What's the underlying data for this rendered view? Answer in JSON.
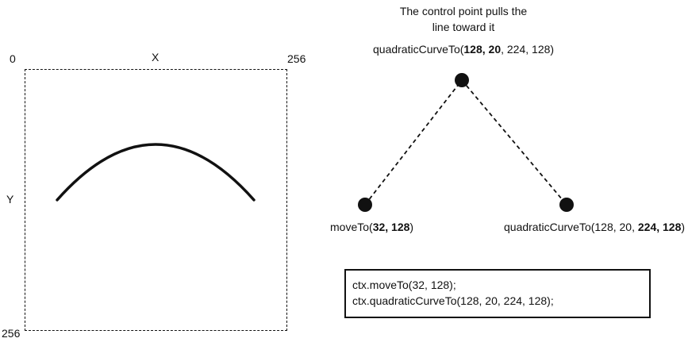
{
  "canvas": {
    "origin_label": "0",
    "x_axis_label": "X",
    "x_max_label": "256",
    "y_axis_label": "Y",
    "y_max_label": "256"
  },
  "caption": {
    "line1": "The control point pulls the",
    "line2": "line toward it"
  },
  "control_label": {
    "prefix": "quadraticCurveTo(",
    "cp": "128, 20",
    "rest": ", 224, 128)"
  },
  "start_label": {
    "prefix": "moveTo(",
    "pt": "32, 128",
    "suffix": ")"
  },
  "end_label": {
    "prefix": "quadraticCurveTo(128, 20, ",
    "pt": "224, 128",
    "suffix": ")"
  },
  "code": {
    "line1": "ctx.moveTo(32, 128);",
    "line2": "ctx.quadraticCurveTo(128, 20, 224, 128);"
  },
  "colors": {
    "ink": "#111111",
    "background": "#ffffff"
  }
}
